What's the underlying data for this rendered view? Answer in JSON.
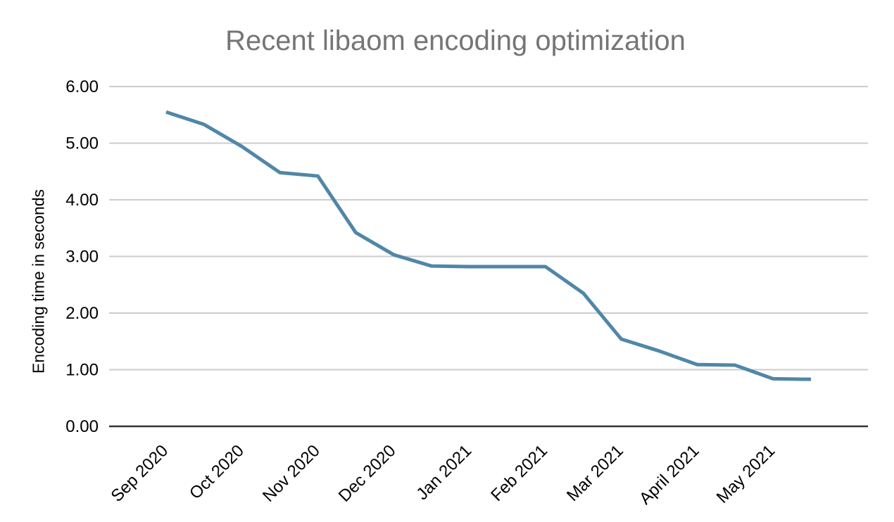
{
  "page": {
    "background_color": "#ffffff"
  },
  "chart_data": {
    "type": "line",
    "title": "Recent libaom encoding optimization",
    "xlabel": "",
    "ylabel": "Encoding time in seconds",
    "x_tick_labels": [
      "Sep 2020",
      "Oct 2020",
      "Nov 2020",
      "Dec 2020",
      "Jan 2021",
      "Feb 2021",
      "Mar 2021",
      "April 2021",
      "May 2021"
    ],
    "x_ticks_every_n_points": 2,
    "points_per_month": 2,
    "series": [
      {
        "name": "Encoding time in seconds",
        "values": [
          5.55,
          5.33,
          4.94,
          4.48,
          4.42,
          3.42,
          3.03,
          2.83,
          2.82,
          2.82,
          2.82,
          2.35,
          1.54,
          1.33,
          1.09,
          1.08,
          0.84,
          0.83
        ],
        "color": "#5087a8"
      }
    ],
    "ylim": [
      0,
      6
    ],
    "y_ticks": [
      0,
      1,
      2,
      3,
      4,
      5,
      6
    ],
    "y_tick_labels": [
      "0.00",
      "1.00",
      "2.00",
      "3.00",
      "4.00",
      "5.00",
      "6.00"
    ],
    "grid": "horizontal",
    "legend": "none",
    "x_label_rotation_deg": -45
  },
  "style": {
    "title_color": "#757575",
    "axis_text_color": "#000000",
    "gridline_color": "#cccccc",
    "axis_line_color": "#333333",
    "line_color": "#5087a8",
    "line_width": 5
  }
}
